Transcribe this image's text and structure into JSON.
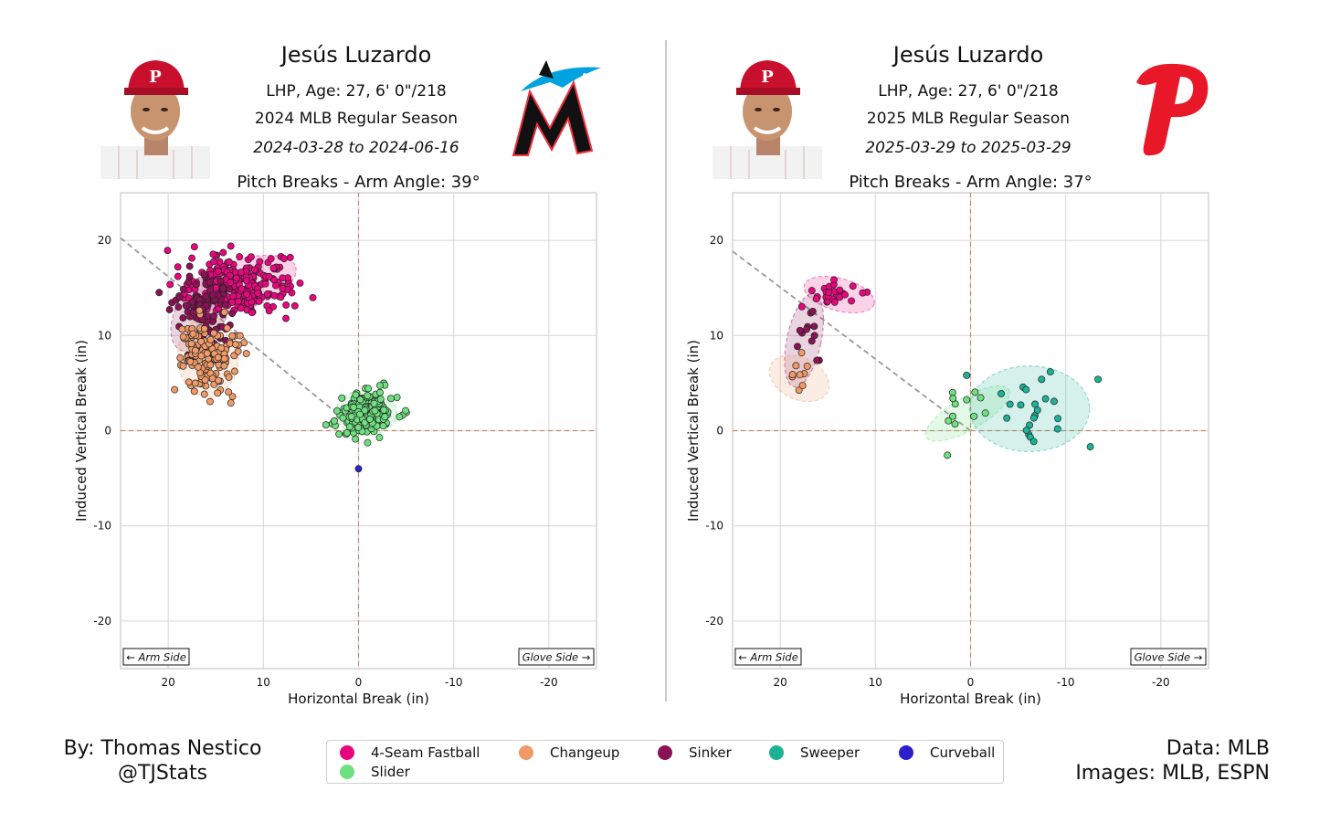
{
  "panels": [
    {
      "name": "Jesús Luzardo",
      "info": "LHP, Age: 27, 6' 0\"/218",
      "season": "2024 MLB Regular Season",
      "date_range": "2024-03-28 to 2024-06-16",
      "team_logo": "marlins-logo",
      "headshot": "player-headshot",
      "plot_title": "Pitch Breaks - Arm Angle: 39°"
    },
    {
      "name": "Jesús Luzardo",
      "info": "LHP, Age: 27, 6' 0\"/218",
      "season": "2025 MLB Regular Season",
      "date_range": "2025-03-29 to 2025-03-29",
      "team_logo": "phillies-logo",
      "headshot": "player-headshot",
      "plot_title": "Pitch Breaks - Arm Angle: 37°"
    }
  ],
  "axis": {
    "xlabel": "Horizontal Break (in)",
    "ylabel": "Induced Vertical Break (in)",
    "x_ticks": [
      "20",
      "10",
      "0",
      "-10",
      "-20"
    ],
    "y_ticks": [
      "20",
      "10",
      "0",
      "-10",
      "-20"
    ],
    "arm_side": "← Arm Side",
    "glove_side": "Glove Side →"
  },
  "pitch_colors": {
    "4-Seam Fastball": "#e8067e",
    "Changeup": "#f09a68",
    "Sinker": "#8b1255",
    "Sweeper": "#1bb295",
    "Curveball": "#2c1fce",
    "Slider": "#6ee07f"
  },
  "legend": {
    "items": [
      {
        "label": "4-Seam Fastball",
        "color": "#e8067e"
      },
      {
        "label": "Changeup",
        "color": "#f09a68"
      },
      {
        "label": "Sinker",
        "color": "#8b1255"
      },
      {
        "label": "Sweeper",
        "color": "#1bb295"
      },
      {
        "label": "Curveball",
        "color": "#2c1fce"
      },
      {
        "label": "Slider",
        "color": "#6ee07f"
      }
    ]
  },
  "footer": {
    "byline_1": "By: Thomas Nestico",
    "byline_2": "@TJStats",
    "credit_1": "Data: MLB",
    "credit_2": "Images: MLB, ESPN"
  },
  "chart_data": [
    {
      "type": "scatter",
      "title": "Pitch Breaks - Arm Angle: 39°",
      "xlabel": "Horizontal Break (in)",
      "ylabel": "Induced Vertical Break (in)",
      "xlim": [
        25,
        -25
      ],
      "ylim": [
        -25,
        25
      ],
      "grid": true,
      "arm_angle_deg": 39,
      "series": [
        {
          "name": "4-Seam Fastball",
          "center": [
            12.5,
            15.3
          ],
          "spread": [
            2.8,
            1.5
          ],
          "count": 260,
          "ellipse": {
            "center": [
              12.5,
              15.3
            ],
            "rx": 6.2,
            "ry": 2.6,
            "angle": 18
          }
        },
        {
          "name": "Sinker",
          "center": [
            16.2,
            12.6
          ],
          "spread": [
            1.6,
            2.2
          ],
          "count": 90,
          "ellipse": {
            "center": [
              16.5,
              12.5
            ],
            "rx": 2.6,
            "ry": 4.6,
            "angle": -30
          }
        },
        {
          "name": "Changeup",
          "center": [
            15.8,
            7.8
          ],
          "spread": [
            1.6,
            2.0
          ],
          "count": 150,
          "ellipse": {
            "center": [
              15.8,
              7.8
            ],
            "rx": 3.2,
            "ry": 4.2,
            "angle": 0
          }
        },
        {
          "name": "Slider",
          "center": [
            -0.8,
            1.9
          ],
          "spread": [
            1.4,
            1.1
          ],
          "count": 220,
          "ellipse": {
            "center": [
              -0.8,
              1.9
            ],
            "rx": 3.2,
            "ry": 2.4,
            "angle": 0
          }
        },
        {
          "name": "Curveball",
          "center": [
            0,
            -4
          ],
          "spread": [
            0,
            0
          ],
          "count": 1
        }
      ]
    },
    {
      "type": "scatter",
      "title": "Pitch Breaks - Arm Angle: 37°",
      "xlabel": "Horizontal Break (in)",
      "ylabel": "Induced Vertical Break (in)",
      "xlim": [
        25,
        -25
      ],
      "ylim": [
        -25,
        25
      ],
      "grid": true,
      "arm_angle_deg": 37,
      "series": [
        {
          "name": "4-Seam Fastball",
          "center": [
            13.8,
            14.3
          ],
          "spread": [
            1.7,
            0.8
          ],
          "count": 26,
          "ellipse": {
            "center": [
              13.8,
              14.3
            ],
            "rx": 3.8,
            "ry": 1.7,
            "angle": -15
          }
        },
        {
          "name": "Sinker",
          "center": [
            17.4,
            8.8
          ],
          "spread": [
            0.9,
            2.3
          ],
          "count": 12,
          "ellipse": {
            "center": [
              17.5,
              9.5
            ],
            "rx": 1.8,
            "ry": 5.0,
            "angle": -12
          }
        },
        {
          "name": "Changeup",
          "center": [
            18.2,
            5.6
          ],
          "spread": [
            0.9,
            1.0
          ],
          "count": 9,
          "ellipse": {
            "center": [
              18.0,
              5.5
            ],
            "rx": 3.3,
            "ry": 2.2,
            "angle": -25
          }
        },
        {
          "name": "Slider",
          "center": [
            0.3,
            1.8
          ],
          "spread": [
            1.8,
            1.6
          ],
          "count": 12,
          "ellipse": {
            "center": [
              0.3,
              1.8
            ],
            "rx": 5.0,
            "ry": 1.7,
            "angle": 30
          }
        },
        {
          "name": "Sweeper",
          "center": [
            -6.5,
            2.3
          ],
          "spread": [
            2.6,
            2.3
          ],
          "count": 24,
          "ellipse": {
            "center": [
              -6.2,
              2.3
            ],
            "rx": 6.3,
            "ry": 4.5,
            "angle": 0
          }
        }
      ]
    }
  ]
}
